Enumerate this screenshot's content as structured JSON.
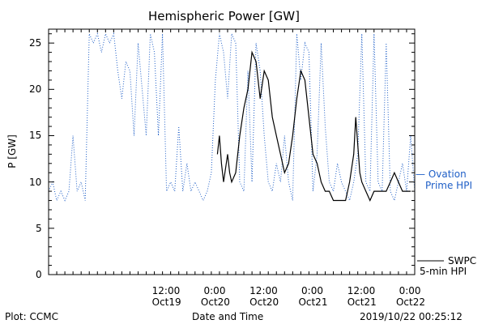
{
  "chart_data": {
    "type": "line",
    "title": "Hemispheric Power [GW]",
    "ylabel": "P [GW]",
    "xlabel": "Date and Time",
    "ylim": [
      0,
      26.5
    ],
    "xlim": [
      "2019-10-18T07:00",
      "2019-10-22T01:00"
    ],
    "yticks": [
      0,
      5,
      10,
      15,
      20,
      25
    ],
    "xticks": [
      {
        "t": "2019-10-19T12:00",
        "line1": "12:00",
        "line2": "Oct19"
      },
      {
        "t": "2019-10-20T00:00",
        "line1": "0:00",
        "line2": "Oct20"
      },
      {
        "t": "2019-10-20T12:00",
        "line1": "12:00",
        "line2": "Oct20"
      },
      {
        "t": "2019-10-21T00:00",
        "line1": "0:00",
        "line2": "Oct21"
      },
      {
        "t": "2019-10-21T12:00",
        "line1": "12:00",
        "line2": "Oct21"
      },
      {
        "t": "2019-10-22T00:00",
        "line1": "0:00",
        "line2": "Oct22"
      }
    ],
    "grid": false,
    "legend_position": "right",
    "series": [
      {
        "name": "Ovation Prime HPI",
        "style": "dotted",
        "color": "#1f5fc7",
        "x": [
          "2019-10-18T07:00",
          "2019-10-18T08:00",
          "2019-10-18T09:00",
          "2019-10-18T10:00",
          "2019-10-18T11:00",
          "2019-10-18T12:00",
          "2019-10-18T13:00",
          "2019-10-18T14:00",
          "2019-10-18T15:00",
          "2019-10-18T16:00",
          "2019-10-18T17:00",
          "2019-10-18T18:00",
          "2019-10-18T19:00",
          "2019-10-18T20:00",
          "2019-10-18T21:00",
          "2019-10-18T22:00",
          "2019-10-18T23:00",
          "2019-10-19T00:00",
          "2019-10-19T01:00",
          "2019-10-19T02:00",
          "2019-10-19T03:00",
          "2019-10-19T04:00",
          "2019-10-19T05:00",
          "2019-10-19T06:00",
          "2019-10-19T07:00",
          "2019-10-19T08:00",
          "2019-10-19T09:00",
          "2019-10-19T10:00",
          "2019-10-19T11:00",
          "2019-10-19T12:00",
          "2019-10-19T13:00",
          "2019-10-19T14:00",
          "2019-10-19T15:00",
          "2019-10-19T16:00",
          "2019-10-19T17:00",
          "2019-10-19T18:00",
          "2019-10-19T19:00",
          "2019-10-19T20:00",
          "2019-10-19T21:00",
          "2019-10-19T22:00",
          "2019-10-19T23:00",
          "2019-10-20T00:00",
          "2019-10-20T01:00",
          "2019-10-20T02:00",
          "2019-10-20T03:00",
          "2019-10-20T04:00",
          "2019-10-20T05:00",
          "2019-10-20T06:00",
          "2019-10-20T07:00",
          "2019-10-20T08:00",
          "2019-10-20T09:00",
          "2019-10-20T10:00",
          "2019-10-20T11:00",
          "2019-10-20T12:00",
          "2019-10-20T13:00",
          "2019-10-20T14:00",
          "2019-10-20T15:00",
          "2019-10-20T16:00",
          "2019-10-20T17:00",
          "2019-10-20T18:00",
          "2019-10-20T19:00",
          "2019-10-20T20:00",
          "2019-10-20T21:00",
          "2019-10-20T22:00",
          "2019-10-20T23:00",
          "2019-10-21T00:00",
          "2019-10-21T01:00",
          "2019-10-21T02:00",
          "2019-10-21T03:00",
          "2019-10-21T04:00",
          "2019-10-21T05:00",
          "2019-10-21T06:00",
          "2019-10-21T07:00",
          "2019-10-21T08:00",
          "2019-10-21T09:00",
          "2019-10-21T10:00",
          "2019-10-21T11:00",
          "2019-10-21T12:00",
          "2019-10-21T13:00",
          "2019-10-21T14:00",
          "2019-10-21T15:00",
          "2019-10-21T16:00",
          "2019-10-21T17:00",
          "2019-10-21T18:00",
          "2019-10-21T19:00",
          "2019-10-21T20:00",
          "2019-10-21T21:00",
          "2019-10-21T22:00",
          "2019-10-21T23:00",
          "2019-10-22T00:00",
          "2019-10-22T01:00"
        ],
        "y": [
          9,
          10,
          8,
          9,
          8,
          9,
          15,
          9,
          10,
          8,
          26,
          25,
          26,
          24,
          26,
          25,
          26,
          22,
          19,
          23,
          22,
          15,
          25,
          20,
          15,
          26,
          24,
          15,
          26,
          9,
          10,
          9,
          16,
          9,
          12,
          9,
          10,
          9,
          8,
          9,
          11,
          21,
          26,
          24,
          19,
          26,
          25,
          10,
          9,
          22,
          10,
          25,
          22,
          15,
          10,
          9,
          12,
          10,
          15,
          10,
          8,
          26,
          21,
          25,
          24,
          9,
          13,
          25,
          16,
          10,
          9,
          12,
          10,
          9,
          8,
          10,
          13,
          26,
          10,
          9,
          26,
          10,
          9,
          25,
          9,
          8,
          10,
          12,
          9,
          15,
          9
        ],
        "y_note": "values above 26.5 are clipped at the top of the axis"
      },
      {
        "name": "SWPC 5-min HPI",
        "style": "solid",
        "color": "#000000",
        "x": [
          "2019-10-20T00:30",
          "2019-10-20T01:00",
          "2019-10-20T01:30",
          "2019-10-20T02:00",
          "2019-10-20T03:00",
          "2019-10-20T03:30",
          "2019-10-20T04:00",
          "2019-10-20T05:00",
          "2019-10-20T06:00",
          "2019-10-20T07:00",
          "2019-10-20T08:00",
          "2019-10-20T09:00",
          "2019-10-20T10:00",
          "2019-10-20T11:00",
          "2019-10-20T12:00",
          "2019-10-20T13:00",
          "2019-10-20T14:00",
          "2019-10-20T15:00",
          "2019-10-20T16:00",
          "2019-10-20T17:00",
          "2019-10-20T18:00",
          "2019-10-20T19:00",
          "2019-10-20T20:00",
          "2019-10-20T21:00",
          "2019-10-20T22:00",
          "2019-10-20T23:00",
          "2019-10-21T00:00",
          "2019-10-21T01:00",
          "2019-10-21T02:00",
          "2019-10-21T03:00",
          "2019-10-21T04:00",
          "2019-10-21T05:00",
          "2019-10-21T06:00",
          "2019-10-21T07:00",
          "2019-10-21T08:00",
          "2019-10-21T09:00",
          "2019-10-21T10:00",
          "2019-10-21T10:30",
          "2019-10-21T11:00",
          "2019-10-21T11:30",
          "2019-10-21T12:00",
          "2019-10-21T13:00",
          "2019-10-21T14:00",
          "2019-10-21T15:00",
          "2019-10-21T16:00",
          "2019-10-21T17:00",
          "2019-10-21T18:00",
          "2019-10-21T19:00",
          "2019-10-21T20:00",
          "2019-10-21T21:00",
          "2019-10-21T22:00",
          "2019-10-21T23:00",
          "2019-10-22T00:00"
        ],
        "y": [
          13,
          15,
          12,
          10,
          13,
          11,
          10,
          11,
          15,
          18,
          20,
          24,
          23,
          19,
          22,
          21,
          17,
          15,
          13,
          11,
          12,
          15,
          19,
          22,
          21,
          17,
          13,
          12,
          10,
          9,
          9,
          8,
          8,
          8,
          8,
          10,
          13,
          17,
          14,
          11,
          10,
          9,
          8,
          9,
          9,
          9,
          9,
          10,
          11,
          10,
          9,
          9,
          9
        ]
      }
    ]
  },
  "legend": {
    "ovation_line1": "— Ovation",
    "ovation_line2": "Prime HPI",
    "swpc_line1": "SWPC",
    "swpc_line2": "5-min HPI"
  },
  "footer": {
    "plot_credit": "Plot: CCMC",
    "timestamp": "2019/10/22 00:25:12"
  }
}
